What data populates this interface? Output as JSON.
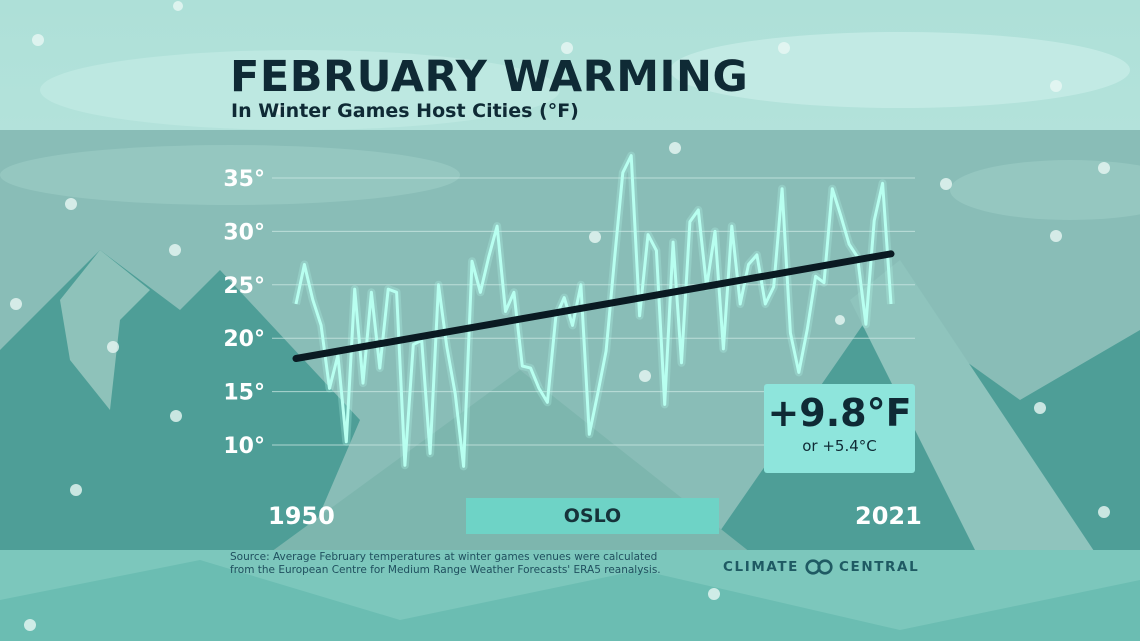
{
  "header": {
    "title": "FEBRUARY WARMING",
    "subtitle": "In Winter Games Host Cities (°F)"
  },
  "chart_data": {
    "type": "line",
    "title": "FEBRUARY WARMING",
    "subtitle": "In Winter Games Host Cities (°F)",
    "x_start_label": "1950",
    "x_end_label": "2021",
    "xlim": [
      1950,
      2021
    ],
    "ylim": [
      5,
      38
    ],
    "yticks": [
      10,
      15,
      20,
      25,
      30,
      35
    ],
    "ytick_labels": [
      "10°",
      "15°",
      "20°",
      "25°",
      "30°",
      "35°"
    ],
    "grid": true,
    "series": [
      {
        "x": [
          1950,
          1951,
          1952,
          1953,
          1954,
          1955,
          1956,
          1957,
          1958,
          1959,
          1960,
          1961,
          1962,
          1963,
          1964,
          1965,
          1966,
          1967,
          1968,
          1969,
          1970,
          1971,
          1972,
          1973,
          1974,
          1975,
          1976,
          1977,
          1978,
          1979,
          1980,
          1981,
          1982,
          1983,
          1984,
          1985,
          1986,
          1987,
          1988,
          1989,
          1990,
          1991,
          1992,
          1993,
          1994,
          1995,
          1996,
          1997,
          1998,
          1999,
          2000,
          2001,
          2002,
          2003,
          2004,
          2005,
          2006,
          2007,
          2008,
          2009,
          2010,
          2011,
          2012,
          2013,
          2014,
          2015,
          2016,
          2017,
          2018,
          2019,
          2020,
          2021
        ],
        "values": [
          23.2,
          26.9,
          23.6,
          21.2,
          15.3,
          18.4,
          10.3,
          24.6,
          15.8,
          24.3,
          17.2,
          24.6,
          24.3,
          8.1,
          19.4,
          19.8,
          9.2,
          25.0,
          19.2,
          14.8,
          8.0,
          27.2,
          24.3,
          27.6,
          30.5,
          22.5,
          24.3,
          17.4,
          17.2,
          15.3,
          14.0,
          22.0,
          23.8,
          21.2,
          25.0,
          11.0,
          14.8,
          18.8,
          27.4,
          35.5,
          37.1,
          22.1,
          29.7,
          28.2,
          13.8,
          29.0,
          17.7,
          30.9,
          32.0,
          24.8,
          30.0,
          19.0,
          30.5,
          23.2,
          26.9,
          27.8,
          23.2,
          24.8,
          34.0,
          20.5,
          16.8,
          20.8,
          25.8,
          25.2,
          34.0,
          31.5,
          28.8,
          27.6,
          21.3,
          31.0,
          34.5,
          23.2
        ]
      }
    ],
    "trend": {
      "from": [
        1950,
        18.1
      ],
      "to": [
        2021,
        27.9
      ]
    },
    "colors": {
      "line": "#b8fff0",
      "trend": "#0a1a22"
    }
  },
  "city": {
    "name": "OSLO"
  },
  "change": {
    "main": "+9.8°F",
    "sub": "or +5.4°C"
  },
  "footer": {
    "source_line1": "Source: Average February temperatures at winter games venues were calculated",
    "source_line2": "from the European Centre for Medium Range Weather Forecasts' ERA5 reanalysis.",
    "brand_left": "CLIMATE",
    "brand_right": "CENTRAL",
    "brand_icon": "linked-circles-logo"
  }
}
